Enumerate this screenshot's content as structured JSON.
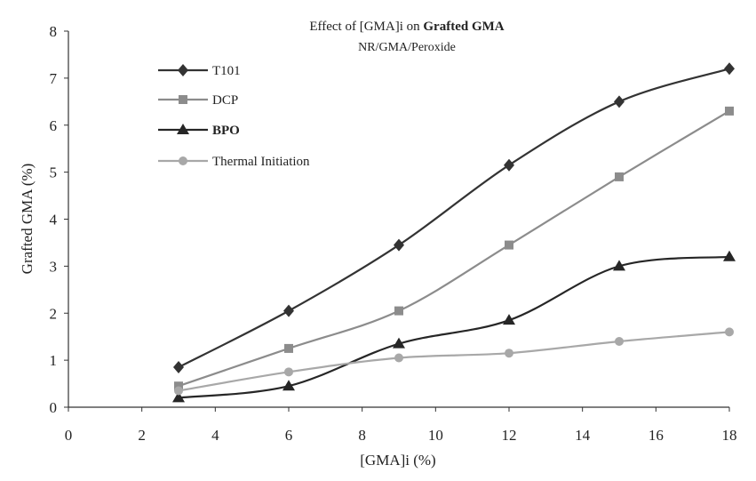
{
  "chart_data": {
    "type": "line",
    "title_prefix": "Effect of [GMA]i on ",
    "title_bold": "Grafted GMA",
    "subtitle": "NR/GMA/Peroxide",
    "xlabel": "[GMA]i (%)",
    "ylabel": "Grafted GMA (%)",
    "xlim": [
      0,
      18
    ],
    "ylim": [
      0,
      8
    ],
    "xticks": [
      "0",
      "2",
      "4",
      "6",
      "8",
      "10",
      "12",
      "14",
      "16",
      "18"
    ],
    "yticks": [
      "0",
      "1",
      "2",
      "3",
      "4",
      "5",
      "6",
      "7",
      "8"
    ],
    "grid": false,
    "legend_position": "top-left",
    "x": [
      3,
      6,
      9,
      12,
      15,
      18
    ],
    "series": [
      {
        "name": "T101",
        "values": [
          0.85,
          2.05,
          3.45,
          5.15,
          6.5,
          7.2
        ],
        "color": "#333333",
        "marker": "diamond",
        "bold_label": false
      },
      {
        "name": "DCP",
        "values": [
          0.45,
          1.25,
          2.05,
          3.45,
          4.9,
          6.3
        ],
        "color": "#8c8c8c",
        "marker": "square",
        "bold_label": false
      },
      {
        "name": "BPO",
        "values": [
          0.2,
          0.45,
          1.35,
          1.85,
          3.0,
          3.2
        ],
        "color": "#262626",
        "marker": "triangle",
        "bold_label": true
      },
      {
        "name": "Thermal Initiation",
        "values": [
          0.35,
          0.75,
          1.05,
          1.15,
          1.4,
          1.6
        ],
        "color": "#a8a8a8",
        "marker": "circle",
        "bold_label": false
      }
    ]
  }
}
